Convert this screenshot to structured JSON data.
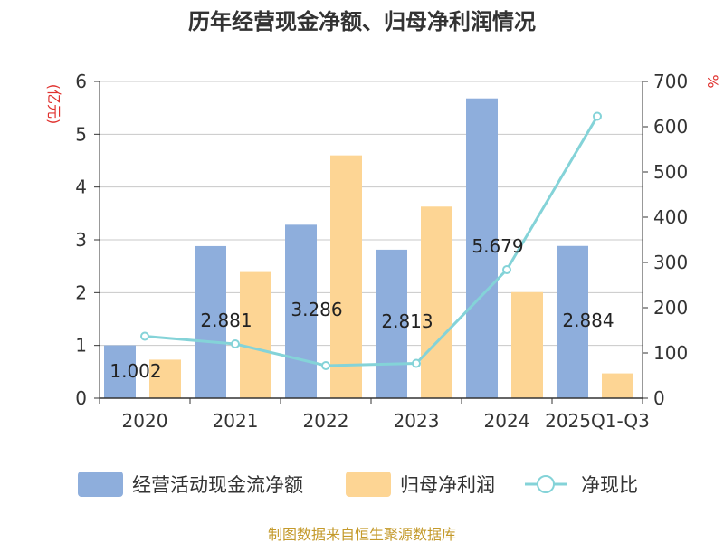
{
  "title": "历年经营现金净额、归母净利润情况",
  "left_axis_unit": "(亿元)",
  "right_axis_unit": "%",
  "source": "制图数据来自恒生聚源数据库",
  "colors": {
    "operating_cash": "#8eaedc",
    "net_profit": "#fdd594",
    "ratio": "#84d3d8",
    "unit_text": "#e0322f",
    "source_text": "#c49a2b"
  },
  "chart_data": {
    "type": "bar",
    "title": "历年经营现金净额、归母净利润情况",
    "categories": [
      "2020",
      "2021",
      "2022",
      "2023",
      "2024",
      "2025Q1-Q3"
    ],
    "ylim": [
      0,
      6
    ],
    "yticks": [
      "0",
      "1",
      "2",
      "3",
      "4",
      "5",
      "6"
    ],
    "y2lim": [
      0,
      700
    ],
    "y2ticks": [
      "0",
      "100",
      "200",
      "300",
      "400",
      "500",
      "600",
      "700"
    ],
    "grid": true,
    "legend_position": "bottom",
    "series": [
      {
        "name": "经营活动现金流净额",
        "type": "bar",
        "axis": "left",
        "values": [
          1.002,
          2.881,
          3.286,
          2.813,
          5.679,
          2.884
        ],
        "labels": [
          "1.002",
          "2.881",
          "3.286",
          "2.813",
          "5.679",
          "2.884"
        ]
      },
      {
        "name": "归母净利润",
        "type": "bar",
        "axis": "left",
        "values": [
          0.73,
          2.39,
          4.6,
          3.63,
          2.01,
          0.47
        ]
      },
      {
        "name": "净现比",
        "type": "line",
        "axis": "right",
        "values": [
          137,
          120,
          72,
          77,
          284,
          623
        ]
      }
    ]
  }
}
